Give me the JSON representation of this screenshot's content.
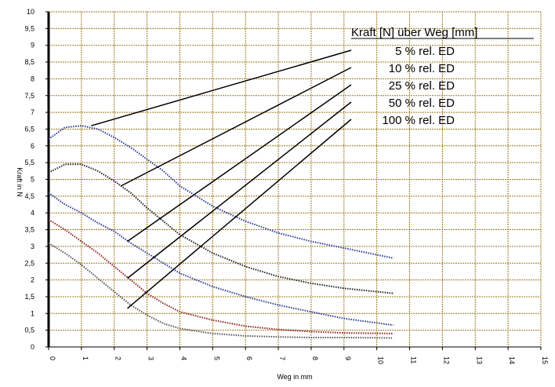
{
  "chart_data": {
    "type": "line",
    "legend_title": "Kraft [N] über Weg [mm]",
    "xlabel": "Weg in mm",
    "ylabel": "Kraft in N",
    "xlim": [
      0,
      15
    ],
    "ylim": [
      0,
      10
    ],
    "x_ticks": [
      0,
      1,
      2,
      3,
      4,
      5,
      6,
      7,
      8,
      9,
      10,
      11,
      12,
      13,
      14,
      15
    ],
    "x_tick_labels": [
      "0",
      "1",
      "2",
      "3",
      "4",
      "5",
      "6",
      "7",
      "8",
      "9",
      "10",
      "11",
      "12",
      "13",
      "14",
      "15"
    ],
    "y_ticks": [
      0,
      0.5,
      1,
      1.5,
      2,
      2.5,
      3,
      3.5,
      4,
      4.5,
      5,
      5.5,
      6,
      6.5,
      7,
      7.5,
      8,
      8.5,
      9,
      9.5,
      10
    ],
    "y_tick_labels": [
      "0",
      "0,5",
      "1",
      "1,5",
      "2",
      "2,5",
      "3",
      "3,5",
      "4",
      "4,5",
      "5",
      "5,5",
      "6",
      "6,5",
      "7",
      "7,5",
      "8",
      "8,5",
      "9",
      "9,5",
      "10"
    ],
    "grid": true,
    "legend_position": "top-right",
    "series": [
      {
        "name": "5 % rel. ED",
        "color": "#2a3a9a",
        "x": [
          0,
          0.5,
          1,
          1.5,
          2,
          2.5,
          3,
          3.5,
          4,
          5,
          6,
          7,
          8,
          9,
          10.5
        ],
        "y": [
          6.2,
          6.55,
          6.6,
          6.5,
          6.25,
          5.95,
          5.6,
          5.25,
          4.8,
          4.2,
          3.75,
          3.4,
          3.15,
          2.95,
          2.65
        ],
        "legend_anchor": [
          1.3,
          6.6
        ]
      },
      {
        "name": "10 % rel. ED",
        "color": "#222222",
        "x": [
          0,
          0.5,
          1,
          1.5,
          2,
          2.5,
          3,
          3.5,
          4,
          5,
          6,
          7,
          8,
          9,
          10.5
        ],
        "y": [
          5.2,
          5.45,
          5.45,
          5.25,
          4.95,
          4.6,
          4.15,
          3.75,
          3.35,
          2.8,
          2.4,
          2.1,
          1.9,
          1.75,
          1.6
        ],
        "legend_anchor": [
          2.2,
          4.8
        ]
      },
      {
        "name": "25 % rel. ED",
        "color": "#2a3a9a",
        "x": [
          0,
          0.5,
          1,
          1.5,
          2,
          2.5,
          3,
          3.5,
          4,
          5,
          6,
          7,
          8,
          9,
          10.5
        ],
        "y": [
          4.6,
          4.25,
          4.0,
          3.7,
          3.45,
          3.1,
          2.8,
          2.5,
          2.2,
          1.8,
          1.5,
          1.25,
          1.05,
          0.85,
          0.65
        ],
        "legend_anchor": [
          2.4,
          3.15
        ]
      },
      {
        "name": "50 % rel. ED",
        "color": "#8a2020",
        "x": [
          0,
          0.5,
          1,
          1.5,
          2,
          2.5,
          3,
          3.5,
          4,
          5,
          6,
          7,
          8,
          9,
          10.5
        ],
        "y": [
          3.8,
          3.5,
          3.15,
          2.8,
          2.4,
          2.0,
          1.6,
          1.3,
          1.05,
          0.8,
          0.62,
          0.52,
          0.46,
          0.42,
          0.4
        ],
        "legend_anchor": [
          2.4,
          2.05
        ]
      },
      {
        "name": "100 % rel. ED",
        "color": "#555555",
        "x": [
          0,
          0.5,
          1,
          1.5,
          2,
          2.5,
          3,
          3.5,
          4,
          5,
          6,
          7,
          8,
          9,
          10.5
        ],
        "y": [
          3.1,
          2.8,
          2.45,
          2.05,
          1.65,
          1.25,
          0.95,
          0.7,
          0.55,
          0.4,
          0.33,
          0.3,
          0.28,
          0.28,
          0.27
        ],
        "legend_anchor": [
          2.4,
          1.15
        ]
      }
    ]
  }
}
